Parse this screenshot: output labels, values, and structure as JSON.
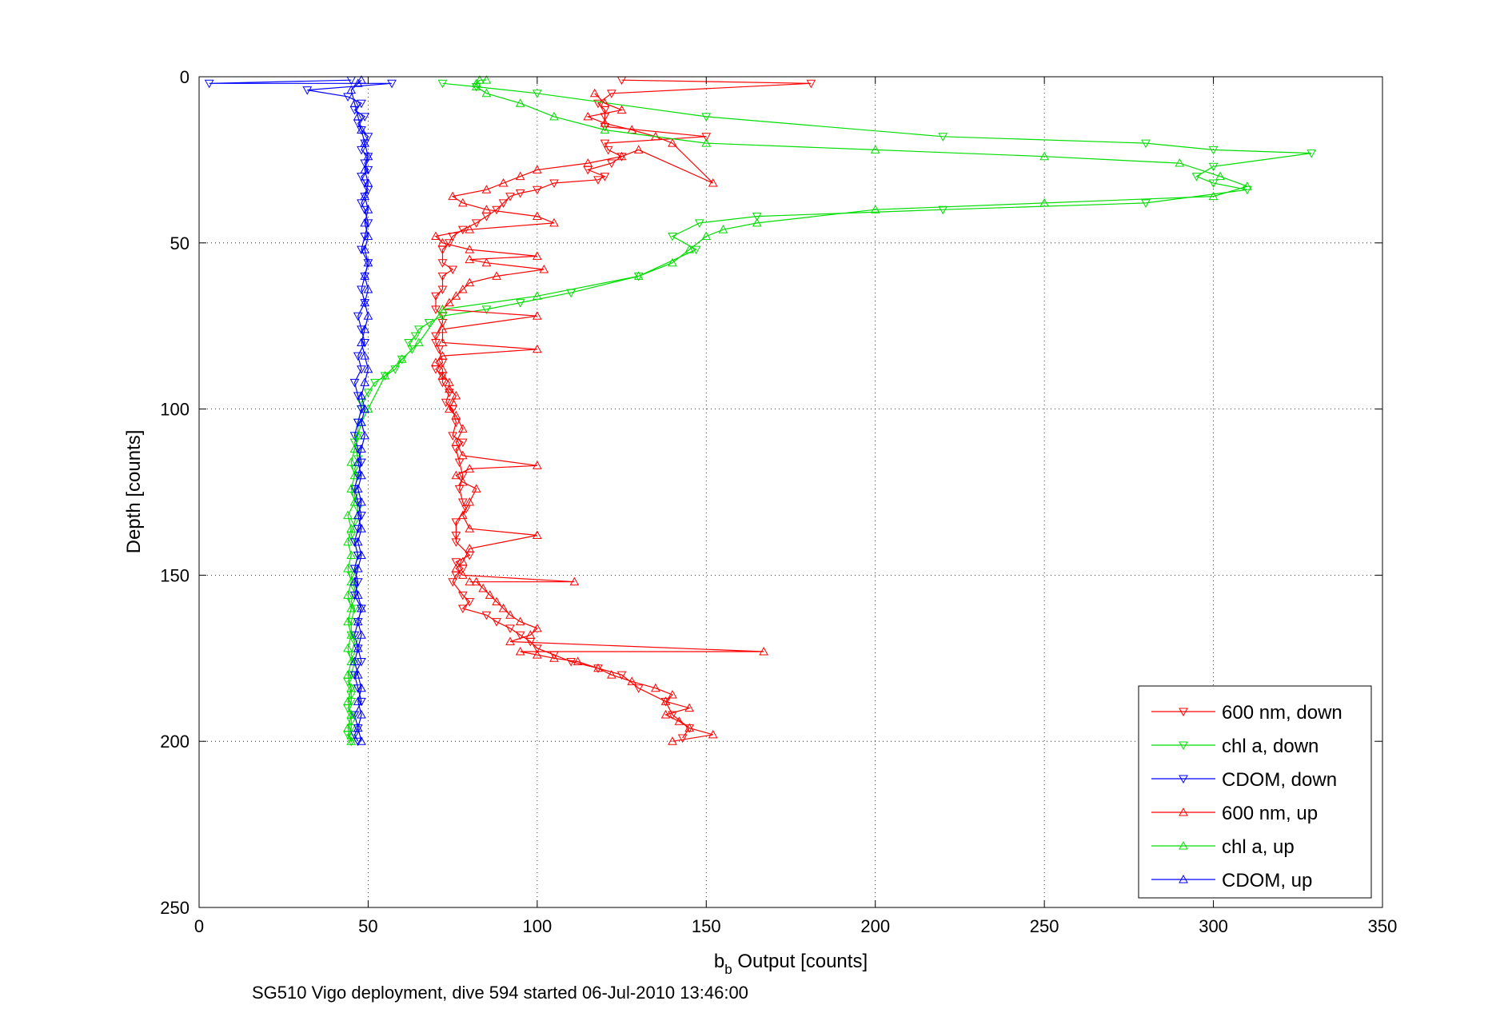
{
  "chart_data": {
    "type": "line",
    "title": "",
    "xlabel": "b",
    "xlabel_sub": "b",
    "xlabel_rest": " Output [counts]",
    "ylabel": "Depth [counts]",
    "caption": "SG510 Vigo deployment, dive 594 started 06-Jul-2010 13:46:00",
    "xlim": [
      0,
      350
    ],
    "ylim": [
      0,
      250
    ],
    "y_reversed": true,
    "grid": "dotted",
    "legend_position": "bottom-right",
    "xticks": [
      "0",
      "50",
      "100",
      "150",
      "200",
      "250",
      "300",
      "350"
    ],
    "yticks": [
      "0",
      "50",
      "100",
      "150",
      "200",
      "250"
    ],
    "series": [
      {
        "name": "600 nm, down",
        "color": "#ff0000",
        "marker": "triangle-down",
        "x": [
          125,
          181,
          122,
          118,
          120,
          120,
          120,
          150,
          120,
          121,
          125,
          122,
          115,
          120,
          118,
          105,
          100,
          95,
          92,
          90,
          88,
          85,
          82,
          78,
          75,
          74,
          72,
          72,
          75,
          72,
          72,
          70,
          70,
          72,
          72,
          70,
          70,
          71,
          72,
          70,
          72,
          72,
          74,
          73,
          75,
          76,
          75,
          78,
          76,
          77,
          78,
          77,
          78,
          79,
          76,
          76,
          76,
          80,
          76,
          78,
          76,
          75,
          78,
          80,
          78,
          85,
          88,
          92,
          95,
          98,
          100,
          105,
          110,
          118,
          125,
          130,
          138,
          140,
          145,
          143
        ],
        "y": [
          1,
          2,
          5,
          8,
          10,
          12,
          15,
          18,
          20,
          22,
          24,
          26,
          28,
          30,
          31,
          32,
          34,
          35,
          36,
          38,
          40,
          42,
          44,
          46,
          48,
          50,
          52,
          56,
          58,
          60,
          64,
          66,
          70,
          72,
          74,
          78,
          80,
          82,
          86,
          88,
          90,
          92,
          95,
          98,
          100,
          104,
          108,
          110,
          112,
          116,
          120,
          124,
          128,
          130,
          134,
          138,
          140,
          144,
          146,
          148,
          150,
          152,
          156,
          158,
          160,
          162,
          164,
          166,
          168,
          170,
          172,
          174,
          176,
          178,
          180,
          184,
          188,
          192,
          196,
          199
        ]
      },
      {
        "name": "chl a, down",
        "color": "#00dd00",
        "marker": "triangle-down",
        "x": [
          72,
          82,
          100,
          150,
          220,
          280,
          300,
          329,
          300,
          295,
          300,
          310,
          280,
          220,
          165,
          148,
          140,
          147,
          130,
          110,
          95,
          85,
          72,
          68,
          65,
          64,
          62,
          63,
          60,
          58,
          55,
          52,
          50,
          48,
          48,
          47,
          47,
          46,
          47,
          46,
          47,
          46,
          46,
          47,
          46,
          45,
          46,
          47,
          46,
          45,
          46,
          45,
          46,
          45,
          45,
          46,
          45,
          46,
          45,
          44,
          45,
          45,
          45,
          44,
          45,
          45,
          45,
          44,
          45,
          45
        ],
        "y": [
          2,
          3,
          5,
          12,
          18,
          20,
          22,
          23,
          27,
          30,
          32,
          34,
          38,
          40,
          42,
          44,
          48,
          52,
          60,
          65,
          68,
          70,
          72,
          74,
          76,
          78,
          80,
          82,
          85,
          88,
          90,
          92,
          95,
          98,
          100,
          104,
          108,
          110,
          115,
          118,
          120,
          124,
          126,
          130,
          134,
          138,
          140,
          144,
          148,
          150,
          154,
          158,
          160,
          164,
          168,
          170,
          174,
          176,
          180,
          182,
          184,
          186,
          188,
          190,
          192,
          194,
          196,
          198,
          199,
          200
        ]
      },
      {
        "name": "CDOM, down",
        "color": "#0000ff",
        "marker": "triangle-down",
        "x": [
          45,
          3,
          57,
          32,
          44,
          48,
          46,
          49,
          47,
          48,
          50,
          49,
          48,
          50,
          49,
          50,
          48,
          49,
          50,
          49,
          48,
          49,
          50,
          49,
          48,
          50,
          49,
          48,
          49,
          47,
          48,
          49,
          47,
          48,
          46,
          47,
          48,
          47,
          46,
          47,
          48,
          47,
          46,
          47,
          48,
          47,
          46,
          47,
          46,
          47,
          46,
          48,
          47,
          46,
          47,
          48,
          46,
          47,
          48,
          46,
          47,
          46,
          47
        ],
        "y": [
          1,
          2,
          2,
          4,
          6,
          8,
          10,
          12,
          14,
          16,
          18,
          20,
          22,
          24,
          26,
          28,
          30,
          32,
          34,
          36,
          38,
          40,
          44,
          48,
          52,
          56,
          60,
          64,
          68,
          72,
          76,
          80,
          84,
          88,
          92,
          96,
          100,
          104,
          108,
          112,
          116,
          120,
          124,
          128,
          132,
          136,
          140,
          144,
          148,
          152,
          156,
          160,
          164,
          168,
          172,
          176,
          180,
          184,
          188,
          192,
          196,
          198,
          200
        ]
      },
      {
        "name": "600 nm, up",
        "color": "#ff0000",
        "marker": "triangle-up",
        "x": [
          140,
          152,
          145,
          142,
          138,
          145,
          138,
          140,
          135,
          128,
          122,
          118,
          112,
          105,
          100,
          95,
          167,
          92,
          98,
          100,
          95,
          92,
          90,
          88,
          86,
          84,
          82,
          80,
          111,
          78,
          76,
          78,
          80,
          100,
          80,
          78,
          80,
          82,
          78,
          76,
          80,
          100,
          78,
          76,
          78,
          76,
          74,
          75,
          76,
          74,
          74,
          72,
          72,
          70,
          72,
          100,
          72,
          72,
          100,
          72,
          74,
          76,
          78,
          80,
          88,
          102,
          85,
          80,
          100,
          80,
          72,
          70,
          80,
          105,
          100,
          85,
          78,
          75,
          85,
          90,
          95,
          100,
          115,
          125,
          130,
          152,
          140,
          135,
          128,
          120,
          115,
          125,
          120,
          117
        ],
        "y": [
          200,
          198,
          196,
          194,
          192,
          190,
          188,
          186,
          184,
          182,
          180,
          178,
          176,
          175,
          174,
          173,
          173,
          170,
          168,
          166,
          164,
          162,
          160,
          158,
          156,
          154,
          152,
          152,
          152,
          150,
          148,
          146,
          142,
          138,
          136,
          132,
          128,
          124,
          122,
          120,
          118,
          117,
          114,
          110,
          106,
          102,
          100,
          98,
          96,
          94,
          92,
          90,
          88,
          86,
          84,
          82,
          80,
          76,
          72,
          70,
          68,
          66,
          64,
          62,
          60,
          58,
          56,
          55,
          54,
          52,
          50,
          48,
          46,
          44,
          42,
          40,
          38,
          36,
          34,
          32,
          30,
          28,
          26,
          24,
          22,
          32,
          20,
          18,
          16,
          14,
          12,
          10,
          8,
          5
        ]
      },
      {
        "name": "chl a, up",
        "color": "#00dd00",
        "marker": "triangle-up",
        "x": [
          45,
          44,
          45,
          44,
          45,
          44,
          45,
          44,
          45,
          44,
          45,
          44,
          45,
          44,
          45,
          44,
          45,
          44,
          46,
          45,
          46,
          45,
          46,
          47,
          48,
          50,
          55,
          60,
          65,
          72,
          100,
          130,
          140,
          145,
          150,
          155,
          165,
          200,
          250,
          300,
          310,
          302,
          290,
          250,
          200,
          150,
          120,
          105,
          95,
          85,
          82,
          82,
          83,
          85
        ],
        "y": [
          200,
          196,
          192,
          188,
          184,
          180,
          176,
          172,
          168,
          164,
          160,
          156,
          152,
          148,
          144,
          140,
          136,
          132,
          128,
          124,
          120,
          116,
          112,
          108,
          104,
          100,
          90,
          85,
          80,
          70,
          66,
          60,
          56,
          52,
          48,
          46,
          44,
          40,
          38,
          36,
          33,
          30,
          26,
          24,
          22,
          20,
          16,
          12,
          8,
          5,
          3,
          2,
          1,
          1
        ]
      },
      {
        "name": "CDOM, up",
        "color": "#0000ff",
        "marker": "triangle-up",
        "x": [
          48,
          47,
          48,
          47,
          48,
          47,
          46,
          47,
          48,
          47,
          48,
          47,
          46,
          47,
          48,
          47,
          48,
          47,
          48,
          47,
          48,
          47,
          48,
          49,
          48,
          49,
          48,
          49,
          50,
          49,
          48,
          49,
          50,
          49,
          50,
          49,
          50,
          49,
          50,
          49,
          50,
          49,
          50,
          49,
          50,
          49,
          48,
          47,
          46,
          45,
          47,
          48
        ],
        "y": [
          200,
          196,
          192,
          188,
          184,
          180,
          176,
          172,
          168,
          164,
          160,
          156,
          152,
          148,
          144,
          140,
          136,
          132,
          128,
          124,
          120,
          116,
          112,
          108,
          104,
          100,
          96,
          92,
          88,
          84,
          80,
          76,
          72,
          68,
          64,
          60,
          56,
          52,
          48,
          44,
          40,
          36,
          32,
          28,
          24,
          20,
          16,
          12,
          8,
          4,
          2,
          1
        ]
      }
    ]
  }
}
